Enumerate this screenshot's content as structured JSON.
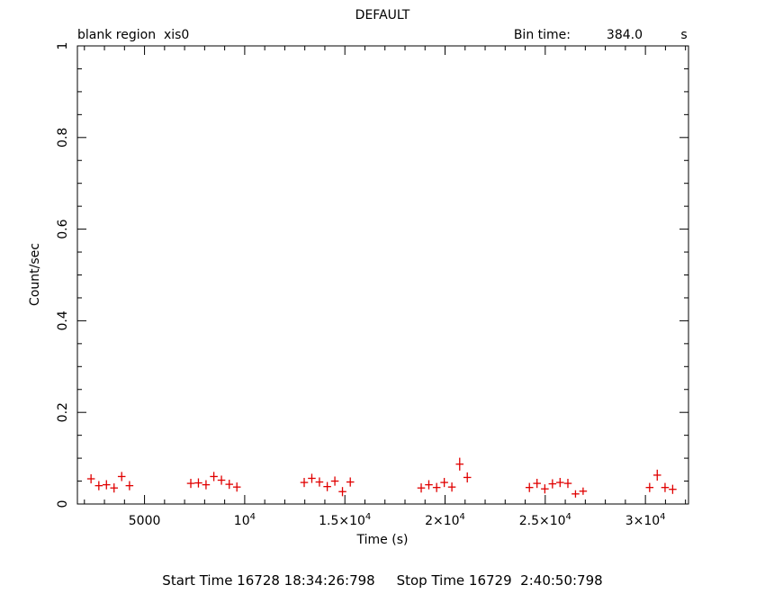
{
  "header": {
    "title": "DEFAULT",
    "left_label": "blank region  xis0",
    "bin_label": "Bin time:",
    "bin_value": "384.0",
    "bin_unit": "s"
  },
  "footer": {
    "start": "Start Time 16728 18:34:26:798",
    "stop": "Stop Time 16729  2:40:50:798"
  },
  "colors": {
    "points": "#e00000",
    "axes": "#000000"
  },
  "chart_data": {
    "type": "scatter",
    "xlabel": "Time (s)",
    "ylabel": "Count/sec",
    "xlim": [
      1650,
      32150
    ],
    "ylim": [
      0,
      1
    ],
    "x_error_halfwidth": 192,
    "x_ticks": [
      {
        "value": 5000,
        "base": "5000",
        "exp": ""
      },
      {
        "value": 10000,
        "base": "10",
        "exp": "4"
      },
      {
        "value": 15000,
        "base": "1.5×10",
        "exp": "4"
      },
      {
        "value": 20000,
        "base": "2×10",
        "exp": "4"
      },
      {
        "value": 25000,
        "base": "2.5×10",
        "exp": "4"
      },
      {
        "value": 30000,
        "base": "3×10",
        "exp": "4"
      }
    ],
    "y_ticks": [
      {
        "value": 0,
        "label": "0"
      },
      {
        "value": 0.2,
        "label": "0.2"
      },
      {
        "value": 0.4,
        "label": "0.4"
      },
      {
        "value": 0.6,
        "label": "0.6"
      },
      {
        "value": 0.8,
        "label": "0.8"
      },
      {
        "value": 1,
        "label": "1"
      }
    ],
    "points": [
      {
        "x": 2330,
        "y": 0.055,
        "yerr": 0.01
      },
      {
        "x": 2720,
        "y": 0.04,
        "yerr": 0.01
      },
      {
        "x": 3100,
        "y": 0.042,
        "yerr": 0.01
      },
      {
        "x": 3480,
        "y": 0.035,
        "yerr": 0.01
      },
      {
        "x": 3860,
        "y": 0.06,
        "yerr": 0.01
      },
      {
        "x": 4250,
        "y": 0.04,
        "yerr": 0.01
      },
      {
        "x": 7310,
        "y": 0.045,
        "yerr": 0.01
      },
      {
        "x": 7690,
        "y": 0.046,
        "yerr": 0.01
      },
      {
        "x": 8070,
        "y": 0.042,
        "yerr": 0.01
      },
      {
        "x": 8460,
        "y": 0.06,
        "yerr": 0.01
      },
      {
        "x": 8840,
        "y": 0.052,
        "yerr": 0.01
      },
      {
        "x": 9230,
        "y": 0.043,
        "yerr": 0.01
      },
      {
        "x": 9610,
        "y": 0.037,
        "yerr": 0.01
      },
      {
        "x": 12970,
        "y": 0.047,
        "yerr": 0.01
      },
      {
        "x": 13350,
        "y": 0.056,
        "yerr": 0.01
      },
      {
        "x": 13730,
        "y": 0.048,
        "yerr": 0.01
      },
      {
        "x": 14120,
        "y": 0.038,
        "yerr": 0.01
      },
      {
        "x": 14500,
        "y": 0.05,
        "yerr": 0.01
      },
      {
        "x": 14880,
        "y": 0.027,
        "yerr": 0.01
      },
      {
        "x": 15270,
        "y": 0.048,
        "yerr": 0.01
      },
      {
        "x": 18810,
        "y": 0.035,
        "yerr": 0.01
      },
      {
        "x": 19190,
        "y": 0.042,
        "yerr": 0.01
      },
      {
        "x": 19580,
        "y": 0.036,
        "yerr": 0.01
      },
      {
        "x": 19960,
        "y": 0.047,
        "yerr": 0.01
      },
      {
        "x": 20340,
        "y": 0.037,
        "yerr": 0.01
      },
      {
        "x": 20730,
        "y": 0.087,
        "yerr": 0.014
      },
      {
        "x": 21110,
        "y": 0.058,
        "yerr": 0.011
      },
      {
        "x": 24210,
        "y": 0.036,
        "yerr": 0.01
      },
      {
        "x": 24590,
        "y": 0.045,
        "yerr": 0.01
      },
      {
        "x": 24980,
        "y": 0.033,
        "yerr": 0.01
      },
      {
        "x": 25360,
        "y": 0.044,
        "yerr": 0.01
      },
      {
        "x": 25740,
        "y": 0.047,
        "yerr": 0.01
      },
      {
        "x": 26130,
        "y": 0.045,
        "yerr": 0.01
      },
      {
        "x": 26510,
        "y": 0.022,
        "yerr": 0.008
      },
      {
        "x": 26890,
        "y": 0.028,
        "yerr": 0.008
      },
      {
        "x": 30210,
        "y": 0.036,
        "yerr": 0.01
      },
      {
        "x": 30590,
        "y": 0.063,
        "yerr": 0.012
      },
      {
        "x": 30980,
        "y": 0.036,
        "yerr": 0.01
      },
      {
        "x": 31360,
        "y": 0.032,
        "yerr": 0.01
      }
    ]
  }
}
